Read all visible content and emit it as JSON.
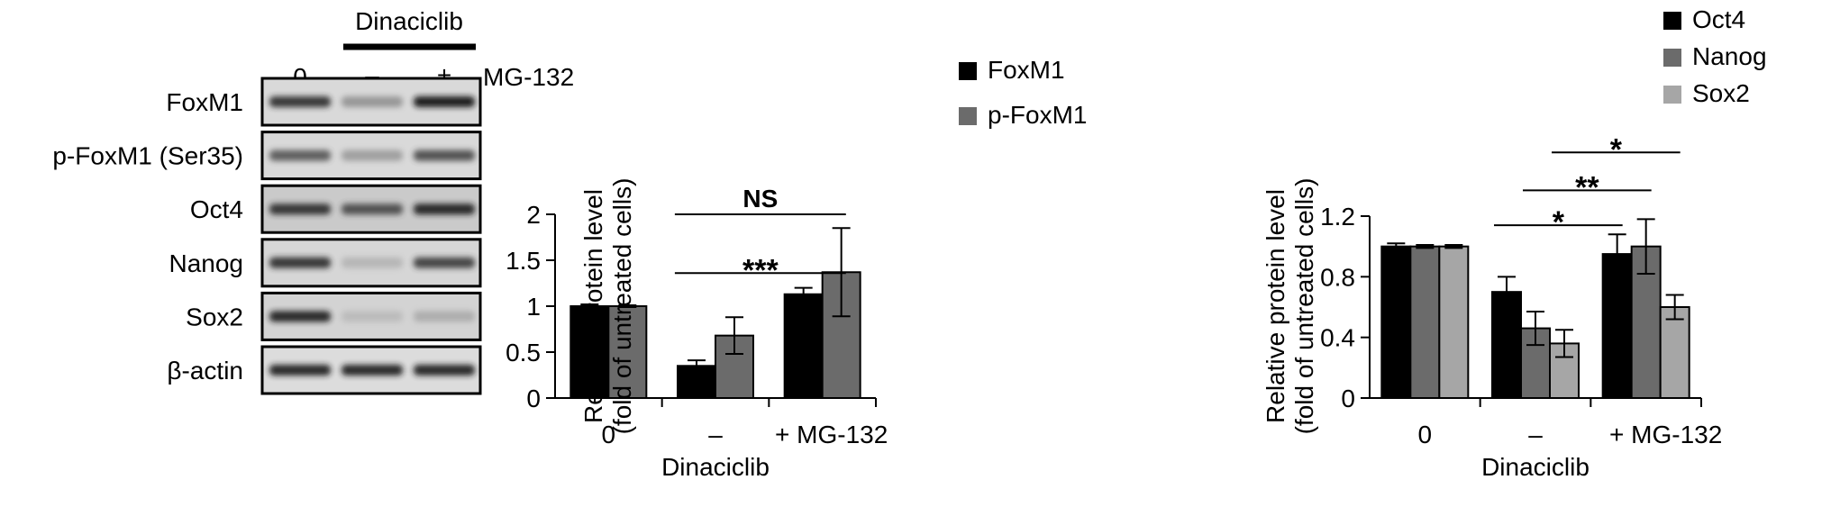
{
  "blot": {
    "treatment_label": "Dinaciclib",
    "lanes": [
      "0",
      "–",
      "+"
    ],
    "mg132_label": "MG-132",
    "rows": [
      {
        "label": "FoxM1",
        "lanes": [
          0.85,
          0.45,
          0.95
        ],
        "bg": 0.3
      },
      {
        "label": "p-FoxM1 (Ser35)",
        "lanes": [
          0.7,
          0.4,
          0.75
        ],
        "bg": 0.3
      },
      {
        "label": "Oct4",
        "lanes": [
          0.85,
          0.75,
          0.9
        ],
        "bg": 0.55
      },
      {
        "label": "Nanog",
        "lanes": [
          0.85,
          0.25,
          0.8
        ],
        "bg": 0.35
      },
      {
        "label": "Sox2",
        "lanes": [
          0.9,
          0.2,
          0.3
        ],
        "bg": 0.4
      },
      {
        "label": "β-actin",
        "lanes": [
          0.9,
          0.9,
          0.9
        ],
        "bg": 0.25
      }
    ]
  },
  "chart_data": [
    {
      "type": "bar",
      "categories": [
        "0",
        "–",
        "+ MG-132"
      ],
      "xlabel": "Dinaciclib",
      "ylabel": [
        "Relative protein level",
        "(fold of untreated cells)"
      ],
      "ylim": [
        0,
        2
      ],
      "yticks": [
        "0",
        "0.5",
        "1",
        "1.5",
        "2"
      ],
      "ytick_values": [
        0,
        0.5,
        1,
        1.5,
        2
      ],
      "legend_position": "top-center",
      "series": [
        {
          "name": "FoxM1",
          "color": "#000000",
          "values": [
            1.0,
            0.35,
            1.13
          ],
          "errors": [
            0.02,
            0.06,
            0.07
          ]
        },
        {
          "name": "p-FoxM1",
          "color": "#6b6b6b",
          "values": [
            1.0,
            0.68,
            1.37
          ],
          "errors": [
            0.01,
            0.2,
            0.48
          ]
        }
      ],
      "annotations": [
        {
          "text": "***",
          "from_category": 1,
          "to_category": 2,
          "level": 1.36
        },
        {
          "text": "NS",
          "from_category": 1,
          "to_category": 2,
          "level": 2.0
        }
      ]
    },
    {
      "type": "bar",
      "categories": [
        "0",
        "–",
        "+ MG-132"
      ],
      "xlabel": "Dinaciclib",
      "ylabel": [
        "Relative protein level",
        "(fold of untreated cells)"
      ],
      "ylim": [
        0,
        1.2
      ],
      "yticks": [
        "0",
        "0.4",
        "0.8",
        "1.2"
      ],
      "ytick_values": [
        0,
        0.4,
        0.8,
        1.2
      ],
      "legend_position": "top-right",
      "series": [
        {
          "name": "Oct4",
          "color": "#000000",
          "values": [
            1.0,
            0.7,
            0.95
          ],
          "errors": [
            0.02,
            0.1,
            0.13
          ]
        },
        {
          "name": "Nanog",
          "color": "#6b6b6b",
          "values": [
            1.0,
            0.46,
            1.0
          ],
          "errors": [
            0.01,
            0.11,
            0.18
          ]
        },
        {
          "name": "Sox2",
          "color": "#a6a6a6",
          "values": [
            1.0,
            0.36,
            0.6
          ],
          "errors": [
            0.01,
            0.09,
            0.08
          ]
        }
      ],
      "annotations": [
        {
          "text": "*",
          "from_series": [
            1,
            0
          ],
          "to_series": [
            2,
            0
          ],
          "level": 1.14
        },
        {
          "text": "**",
          "from_series": [
            1,
            1
          ],
          "to_series": [
            2,
            1
          ],
          "level": 1.37
        },
        {
          "text": "*",
          "from_series": [
            1,
            2
          ],
          "to_series": [
            2,
            2
          ],
          "level": 1.62
        }
      ]
    }
  ]
}
